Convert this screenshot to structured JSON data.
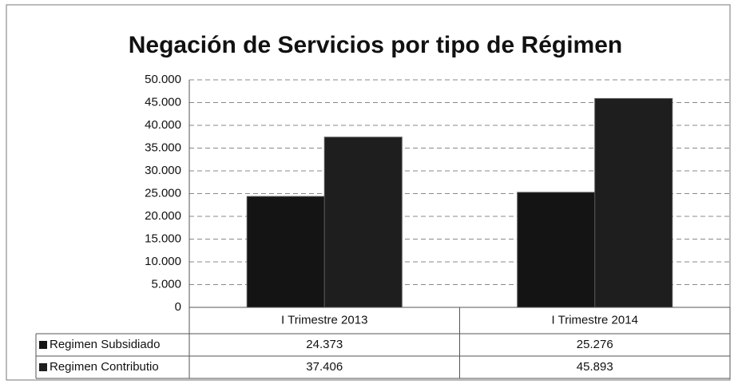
{
  "chart_data": {
    "type": "bar",
    "title": "Negación de Servicios por tipo de Régimen",
    "categories": [
      "I Trimestre 2013",
      "I Trimestre 2014"
    ],
    "series": [
      {
        "name": "Regimen Subsidiado",
        "color": "#141414",
        "values": [
          24373,
          25276
        ],
        "value_labels": [
          "24.373",
          "25.276"
        ]
      },
      {
        "name": "Regimen Contributio",
        "color": "#1e1e1e",
        "values": [
          37406,
          45893
        ],
        "value_labels": [
          "37.406",
          "45.893"
        ]
      }
    ],
    "ylim": [
      0,
      50000
    ],
    "yticks": [
      0,
      {
        "value": 5000,
        "label": "5.000"
      },
      {
        "value": 10000,
        "label": "10.000"
      },
      {
        "value": 15000,
        "label": "15.000"
      },
      {
        "value": 20000,
        "label": "20.000"
      },
      {
        "value": 25000,
        "label": "25.000"
      },
      {
        "value": 30000,
        "label": "30.000"
      },
      {
        "value": 35000,
        "label": "35.000"
      },
      {
        "value": 40000,
        "label": "40.000"
      },
      {
        "value": 45000,
        "label": "45.000"
      },
      {
        "value": 50000,
        "label": "50.000"
      }
    ],
    "grid": true
  }
}
